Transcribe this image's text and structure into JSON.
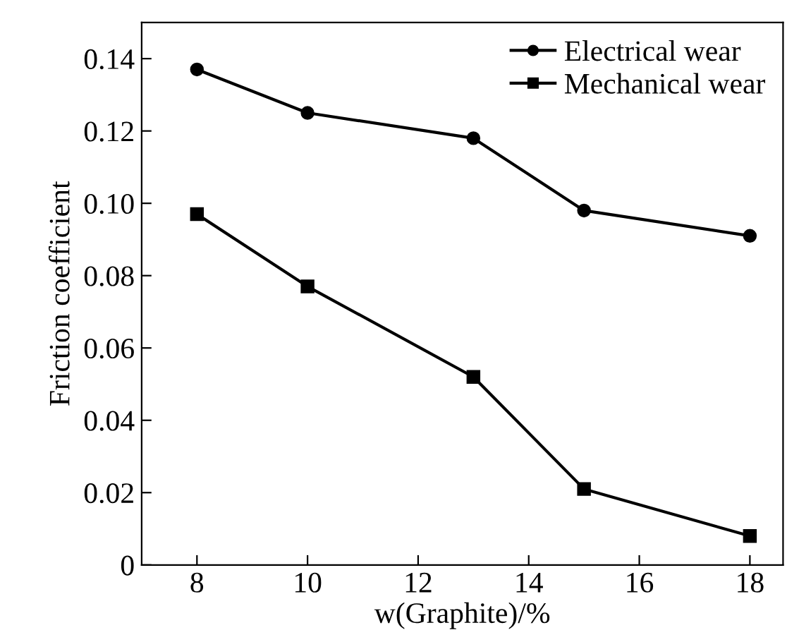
{
  "chart_data": {
    "type": "line",
    "xlabel": "w(Graphite)/%",
    "ylabel": "Friction coefficient",
    "x": [
      8,
      10,
      13,
      15,
      18
    ],
    "series": [
      {
        "name": "Electrical wear",
        "color": "#000000",
        "marker": "circle",
        "values": [
          0.137,
          0.125,
          0.118,
          0.098,
          0.091
        ]
      },
      {
        "name": "Mechanical wear",
        "color": "#000000",
        "marker": "square",
        "values": [
          0.097,
          0.077,
          0.052,
          0.021,
          0.008
        ]
      }
    ],
    "xlim": [
      7,
      18.6
    ],
    "xticks": [
      8,
      10,
      12,
      14,
      16,
      18
    ],
    "ylim": [
      0,
      0.15
    ],
    "yticks": [
      {
        "value": 0,
        "label": "0"
      },
      0.02,
      0.04,
      0.06,
      0.08,
      {
        "value": 0.1,
        "label": "0.10"
      },
      0.12,
      0.14
    ],
    "legend": "top right",
    "line_style": "solid",
    "grid": false
  }
}
